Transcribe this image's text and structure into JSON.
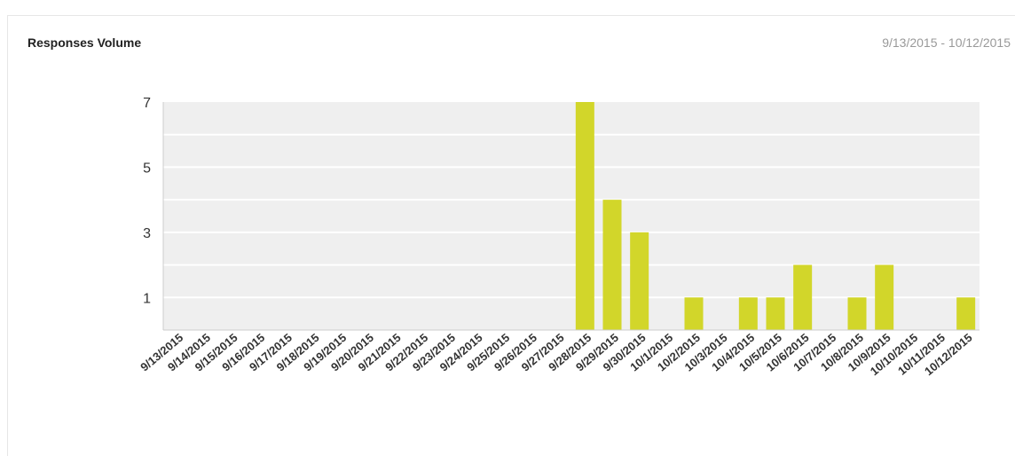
{
  "panel": {
    "title": "Responses Volume",
    "date_range": "9/13/2015 - 10/12/2015"
  },
  "colors": {
    "bar": "#d2d62a",
    "plot_background": "#efefef",
    "gridline": "#ffffff",
    "text": "#333333"
  },
  "chart_data": {
    "type": "bar",
    "title": "",
    "xlabel": "",
    "ylabel": "",
    "ylim": [
      0,
      7
    ],
    "yticks": [
      1,
      3,
      5,
      7
    ],
    "grid": true,
    "legend": "none",
    "categories": [
      "9/13/2015",
      "9/14/2015",
      "9/15/2015",
      "9/16/2015",
      "9/17/2015",
      "9/18/2015",
      "9/19/2015",
      "9/20/2015",
      "9/21/2015",
      "9/22/2015",
      "9/23/2015",
      "9/24/2015",
      "9/25/2015",
      "9/26/2015",
      "9/27/2015",
      "9/28/2015",
      "9/29/2015",
      "9/30/2015",
      "10/1/2015",
      "10/2/2015",
      "10/3/2015",
      "10/4/2015",
      "10/5/2015",
      "10/6/2015",
      "10/7/2015",
      "10/8/2015",
      "10/9/2015",
      "10/10/2015",
      "10/11/2015",
      "10/12/2015"
    ],
    "values": [
      0,
      0,
      0,
      0,
      0,
      0,
      0,
      0,
      0,
      0,
      0,
      0,
      0,
      0,
      0,
      7,
      4,
      3,
      0,
      1,
      0,
      1,
      1,
      2,
      0,
      1,
      2,
      0,
      0,
      1
    ]
  }
}
